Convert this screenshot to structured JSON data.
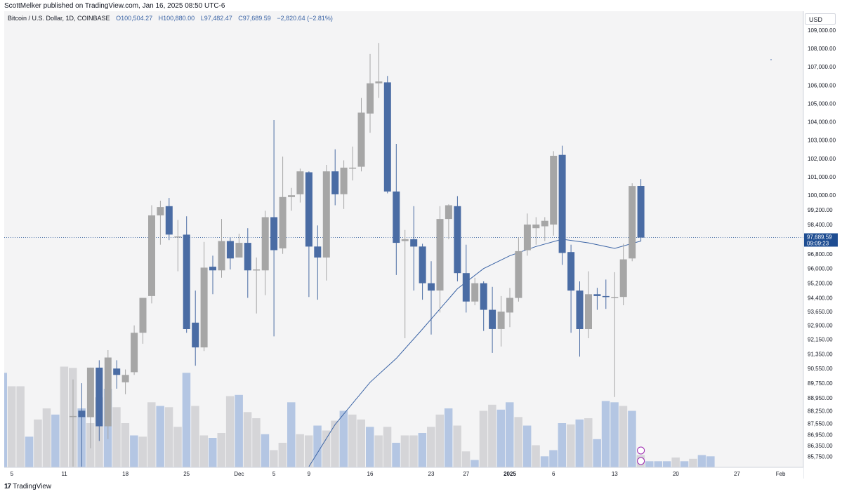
{
  "header": {
    "published": "ScottMelker published on TradingView.com, Jan 16, 2025 08:50 UTC-6"
  },
  "legend": {
    "symbol": "Bitcoin / U.S. Dollar, 1D, COINBASE",
    "open": "O100,504.27",
    "high": "H100,880.00",
    "low": "L97,482.47",
    "close": "C97,689.59",
    "change": "−2,820.64 (−2.81%)"
  },
  "price_scale": {
    "currency": "USD"
  },
  "footer": {
    "logo_mark": "17",
    "brand": "TradingView"
  },
  "colors": {
    "up": "#a6a6a6",
    "down": "#4a6ca4",
    "ma_line": "#3a63a5",
    "vol_up": "#d5d5d8",
    "vol_down": "#b4c6e3",
    "last_price_tag": "#1e4d92",
    "plot_bg": "#f4f4f5"
  },
  "chart_data": {
    "type": "candlestick",
    "symbol": "BTCUSD",
    "timeframe": "1D",
    "ylim": [
      85200,
      109800
    ],
    "y_ticks": [
      "109,000.00",
      "108,000.00",
      "107,000.00",
      "106,000.00",
      "105,000.00",
      "104,000.00",
      "103,000.00",
      "102,000.00",
      "101,000.00",
      "100,000.00",
      "99,200.00",
      "98,400.00",
      "97,600.00",
      "96,800.00",
      "96,000.00",
      "95,200.00",
      "94,400.00",
      "93,650.00",
      "92,900.00",
      "92,150.00",
      "91,350.00",
      "90,550.00",
      "89,750.00",
      "88,950.00",
      "88,250.00",
      "87,550.00",
      "86,950.00",
      "86,350.00",
      "85,750.00"
    ],
    "x_ticks": [
      "5",
      "11",
      "18",
      "25",
      "Dec",
      "5",
      "9",
      "16",
      "23",
      "27",
      "2025",
      "6",
      "13",
      "20",
      "27",
      "Feb"
    ],
    "last_price": {
      "value": "97,689.59",
      "countdown": "09:09:23",
      "price": 97689.59
    },
    "candles": [
      {
        "date": "2024-11-12",
        "o": 87960,
        "h": 89950,
        "l": 85200,
        "c": 87960
      },
      {
        "date": "2024-11-13",
        "o": 88250,
        "h": 89750,
        "l": 85200,
        "c": 87900
      },
      {
        "date": "2024-11-14",
        "o": 87900,
        "h": 90600,
        "l": 86200,
        "c": 90600
      },
      {
        "date": "2024-11-15",
        "o": 90600,
        "h": 91000,
        "l": 86600,
        "c": 87400
      },
      {
        "date": "2024-11-16",
        "o": 87400,
        "h": 91550,
        "l": 86700,
        "c": 91150
      },
      {
        "date": "2024-11-17",
        "o": 90550,
        "h": 91000,
        "l": 89450,
        "c": 90200
      },
      {
        "date": "2024-11-18",
        "o": 89800,
        "h": 90500,
        "l": 89150,
        "c": 90200
      },
      {
        "date": "2024-11-19",
        "o": 90350,
        "h": 92900,
        "l": 90200,
        "c": 92500
      },
      {
        "date": "2024-11-20",
        "o": 92500,
        "h": 94200,
        "l": 91900,
        "c": 94400
      },
      {
        "date": "2024-11-21",
        "o": 94500,
        "h": 99450,
        "l": 94100,
        "c": 98900
      },
      {
        "date": "2024-11-22",
        "o": 98900,
        "h": 99700,
        "l": 97300,
        "c": 99350
      },
      {
        "date": "2024-11-23",
        "o": 99400,
        "h": 99850,
        "l": 97550,
        "c": 97850
      },
      {
        "date": "2024-11-24",
        "o": 97750,
        "h": 98650,
        "l": 95850,
        "c": 97750
      },
      {
        "date": "2024-11-25",
        "o": 97850,
        "h": 98850,
        "l": 92500,
        "c": 92700
      },
      {
        "date": "2024-11-26",
        "o": 93050,
        "h": 94800,
        "l": 90700,
        "c": 91700
      },
      {
        "date": "2024-11-27",
        "o": 91700,
        "h": 97450,
        "l": 91500,
        "c": 96050
      },
      {
        "date": "2024-11-28",
        "o": 96100,
        "h": 96700,
        "l": 94600,
        "c": 95900
      },
      {
        "date": "2024-11-29",
        "o": 95900,
        "h": 98700,
        "l": 95500,
        "c": 97500
      },
      {
        "date": "2024-11-30",
        "o": 97500,
        "h": 97700,
        "l": 95950,
        "c": 96550
      },
      {
        "date": "2024-12-01",
        "o": 96600,
        "h": 97900,
        "l": 96600,
        "c": 97400
      },
      {
        "date": "2024-12-02",
        "o": 97400,
        "h": 98200,
        "l": 94400,
        "c": 95900
      },
      {
        "date": "2024-12-03",
        "o": 95950,
        "h": 96600,
        "l": 93550,
        "c": 95950
      },
      {
        "date": "2024-12-04",
        "o": 95900,
        "h": 99150,
        "l": 94550,
        "c": 98800
      },
      {
        "date": "2024-12-05",
        "o": 98800,
        "h": 104100,
        "l": 92300,
        "c": 97000
      },
      {
        "date": "2024-12-06",
        "o": 97100,
        "h": 102100,
        "l": 96800,
        "c": 99900
      },
      {
        "date": "2024-12-07",
        "o": 99900,
        "h": 100400,
        "l": 99150,
        "c": 100000
      },
      {
        "date": "2024-12-08",
        "o": 100050,
        "h": 101450,
        "l": 99600,
        "c": 101300
      },
      {
        "date": "2024-12-09",
        "o": 101250,
        "h": 101300,
        "l": 94450,
        "c": 97200
      },
      {
        "date": "2024-12-10",
        "o": 97200,
        "h": 98350,
        "l": 94300,
        "c": 96600
      },
      {
        "date": "2024-12-11",
        "o": 96600,
        "h": 101650,
        "l": 95350,
        "c": 101300
      },
      {
        "date": "2024-12-12",
        "o": 101300,
        "h": 102500,
        "l": 99450,
        "c": 100050
      },
      {
        "date": "2024-12-13",
        "o": 100050,
        "h": 101900,
        "l": 99250,
        "c": 101500
      },
      {
        "date": "2024-12-14",
        "o": 101450,
        "h": 102650,
        "l": 100800,
        "c": 101500
      },
      {
        "date": "2024-12-15",
        "o": 101550,
        "h": 105300,
        "l": 101300,
        "c": 104500
      },
      {
        "date": "2024-12-16",
        "o": 104450,
        "h": 107700,
        "l": 103400,
        "c": 106100
      },
      {
        "date": "2024-12-17",
        "o": 106100,
        "h": 108300,
        "l": 105300,
        "c": 106200
      },
      {
        "date": "2024-12-18",
        "o": 106150,
        "h": 106500,
        "l": 100100,
        "c": 100200
      },
      {
        "date": "2024-12-19",
        "o": 100200,
        "h": 102800,
        "l": 95650,
        "c": 97400
      },
      {
        "date": "2024-12-20",
        "o": 97500,
        "h": 98100,
        "l": 92200,
        "c": 97600
      },
      {
        "date": "2024-12-21",
        "o": 97600,
        "h": 99400,
        "l": 94800,
        "c": 97200
      },
      {
        "date": "2024-12-22",
        "o": 97200,
        "h": 97350,
        "l": 94300,
        "c": 95200
      },
      {
        "date": "2024-12-23",
        "o": 95200,
        "h": 96400,
        "l": 92400,
        "c": 94800
      },
      {
        "date": "2024-12-24",
        "o": 94800,
        "h": 99400,
        "l": 93600,
        "c": 98700
      },
      {
        "date": "2024-12-25",
        "o": 98700,
        "h": 99500,
        "l": 97600,
        "c": 99450
      },
      {
        "date": "2024-12-26",
        "o": 99400,
        "h": 99950,
        "l": 95300,
        "c": 95750
      },
      {
        "date": "2024-12-27",
        "o": 95750,
        "h": 97300,
        "l": 93600,
        "c": 94200
      },
      {
        "date": "2024-12-28",
        "o": 94200,
        "h": 95500,
        "l": 94000,
        "c": 95200
      },
      {
        "date": "2024-12-29",
        "o": 95200,
        "h": 95300,
        "l": 92600,
        "c": 93750
      },
      {
        "date": "2024-12-30",
        "o": 93750,
        "h": 95000,
        "l": 91400,
        "c": 92700
      },
      {
        "date": "2024-12-31",
        "o": 92700,
        "h": 94500,
        "l": 91750,
        "c": 93650
      },
      {
        "date": "2025-01-01",
        "o": 93600,
        "h": 94950,
        "l": 92800,
        "c": 94400
      },
      {
        "date": "2025-01-02",
        "o": 94400,
        "h": 97700,
        "l": 94200,
        "c": 96950
      },
      {
        "date": "2025-01-03",
        "o": 97000,
        "h": 99000,
        "l": 96700,
        "c": 98400
      },
      {
        "date": "2025-01-04",
        "o": 98200,
        "h": 98800,
        "l": 97300,
        "c": 98400
      },
      {
        "date": "2025-01-05",
        "o": 98300,
        "h": 98800,
        "l": 97500,
        "c": 98600
      },
      {
        "date": "2025-01-06",
        "o": 98400,
        "h": 102400,
        "l": 97800,
        "c": 102150
      },
      {
        "date": "2025-01-07",
        "o": 102200,
        "h": 102700,
        "l": 96200,
        "c": 96850
      },
      {
        "date": "2025-01-08",
        "o": 96900,
        "h": 97300,
        "l": 92500,
        "c": 94800
      },
      {
        "date": "2025-01-09",
        "o": 94800,
        "h": 95300,
        "l": 91200,
        "c": 92700
      },
      {
        "date": "2025-01-10",
        "o": 92700,
        "h": 95850,
        "l": 92200,
        "c": 94600
      },
      {
        "date": "2025-01-11",
        "o": 94600,
        "h": 94950,
        "l": 93750,
        "c": 94500
      },
      {
        "date": "2025-01-12",
        "o": 94500,
        "h": 95400,
        "l": 93800,
        "c": 94450
      },
      {
        "date": "2025-01-13",
        "o": 94450,
        "h": 95800,
        "l": 89000,
        "c": 94450
      },
      {
        "date": "2025-01-14",
        "o": 94450,
        "h": 97350,
        "l": 94000,
        "c": 96500
      },
      {
        "date": "2025-01-15",
        "o": 96550,
        "h": 100650,
        "l": 96400,
        "c": 100500
      },
      {
        "date": "2025-01-16",
        "o": 100504.27,
        "h": 100880,
        "l": 97482.47,
        "c": 97689.59
      }
    ],
    "moving_average": [
      {
        "date": "2024-12-09",
        "value": 85200
      },
      {
        "date": "2024-12-12",
        "value": 87500
      },
      {
        "date": "2024-12-16",
        "value": 89800
      },
      {
        "date": "2024-12-19",
        "value": 91100
      },
      {
        "date": "2024-12-22",
        "value": 92700
      },
      {
        "date": "2024-12-26",
        "value": 94900
      },
      {
        "date": "2024-12-29",
        "value": 96000
      },
      {
        "date": "2025-01-01",
        "value": 96700
      },
      {
        "date": "2025-01-04",
        "value": 97200
      },
      {
        "date": "2025-01-07",
        "value": 97600
      },
      {
        "date": "2025-01-10",
        "value": 97400
      },
      {
        "date": "2025-01-13",
        "value": 97100
      },
      {
        "date": "2025-01-16",
        "value": 97500
      }
    ],
    "volume_relative": [
      0.38,
      0.62,
      0.78,
      0.77,
      0.66,
      0.66,
      0.25,
      0.39,
      0.48,
      0.43,
      0.82,
      0.81,
      0.48,
      0.36,
      0.57,
      0.64,
      0.49,
      0.36,
      0.26,
      0.25,
      0.53,
      0.5,
      0.49,
      0.33,
      0.77,
      0.5,
      0.26,
      0.24,
      0.28,
      0.58,
      0.59,
      0.45,
      0.4,
      0.27,
      0.14,
      0.2,
      0.53,
      0.27,
      0.26,
      0.34,
      0.3,
      0.38,
      0.46,
      0.43,
      0.39,
      0.33,
      0.26,
      0.33,
      0.2,
      0.26,
      0.26,
      0.28,
      0.33,
      0.43,
      0.48,
      0.34,
      0.13,
      0.06,
      0.46,
      0.51,
      0.47,
      0.53,
      0.41,
      0.34,
      0.18,
      0.09,
      0.14,
      0.36,
      0.35,
      0.39,
      0.4,
      0.23,
      0.54,
      0.53,
      0.5,
      0.46,
      0.1,
      0.05,
      0.05,
      0.05,
      0.08,
      0.05,
      0.07,
      0.1,
      0.09
    ]
  }
}
